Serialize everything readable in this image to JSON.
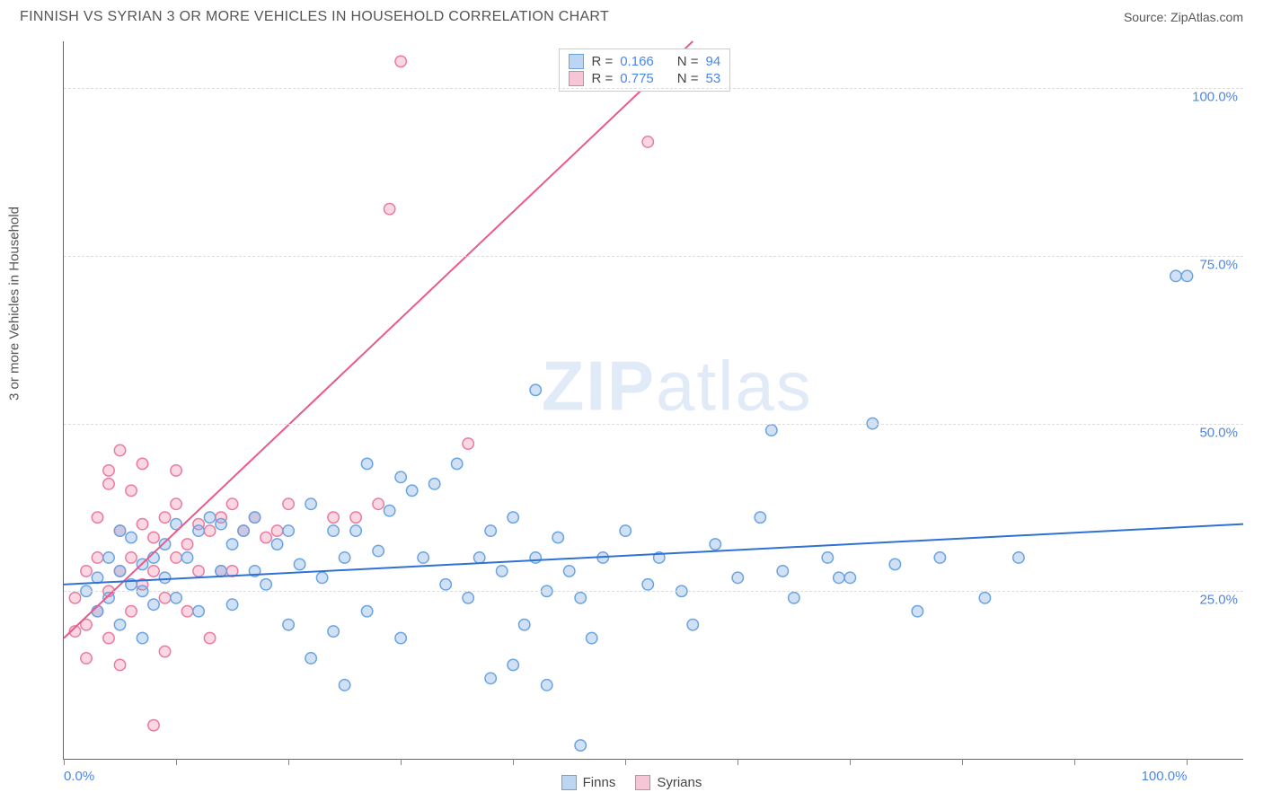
{
  "title": "FINNISH VS SYRIAN 3 OR MORE VEHICLES IN HOUSEHOLD CORRELATION CHART",
  "source_label": "Source: ",
  "source_name": "ZipAtlas.com",
  "y_axis_label": "3 or more Vehicles in Household",
  "watermark": {
    "zip": "ZIP",
    "atlas": "atlas"
  },
  "chart": {
    "type": "scatter",
    "xlim": [
      0,
      105
    ],
    "ylim": [
      0,
      107
    ],
    "y_ticks": [
      {
        "v": 25,
        "label": "25.0%"
      },
      {
        "v": 50,
        "label": "50.0%"
      },
      {
        "v": 75,
        "label": "75.0%"
      },
      {
        "v": 100,
        "label": "100.0%"
      }
    ],
    "x_ticks": [
      0,
      10,
      20,
      30,
      40,
      50,
      60,
      70,
      80,
      90,
      100
    ],
    "x_labels": [
      {
        "v": 0,
        "label": "0.0%"
      },
      {
        "v": 100,
        "label": "100.0%"
      }
    ],
    "marker_radius": 6.2,
    "marker_stroke_width": 1.5,
    "line_width": 2,
    "background_color": "#ffffff",
    "grid_color": "#dddddd"
  },
  "series": {
    "finns": {
      "label": "Finns",
      "fill_color": "rgba(120,170,230,0.35)",
      "stroke_color": "#6aa3e0",
      "line_color": "#2f72d4",
      "swatch_fill": "#bcd5f2",
      "swatch_border": "#6aa3e0",
      "R": "0.166",
      "N": "94",
      "trend": {
        "x1": 0,
        "y1": 26,
        "x2": 105,
        "y2": 35
      },
      "points": [
        [
          2,
          25
        ],
        [
          3,
          27
        ],
        [
          3,
          22
        ],
        [
          4,
          30
        ],
        [
          4,
          24
        ],
        [
          5,
          28
        ],
        [
          5,
          20
        ],
        [
          5,
          34
        ],
        [
          6,
          26
        ],
        [
          6,
          33
        ],
        [
          7,
          25
        ],
        [
          7,
          29
        ],
        [
          7,
          18
        ],
        [
          8,
          30
        ],
        [
          8,
          23
        ],
        [
          9,
          32
        ],
        [
          9,
          27
        ],
        [
          10,
          35
        ],
        [
          10,
          24
        ],
        [
          11,
          30
        ],
        [
          12,
          34
        ],
        [
          12,
          22
        ],
        [
          13,
          36
        ],
        [
          14,
          28
        ],
        [
          14,
          35
        ],
        [
          15,
          23
        ],
        [
          15,
          32
        ],
        [
          16,
          34
        ],
        [
          17,
          28
        ],
        [
          17,
          36
        ],
        [
          18,
          26
        ],
        [
          19,
          32
        ],
        [
          20,
          20
        ],
        [
          20,
          34
        ],
        [
          21,
          29
        ],
        [
          22,
          38
        ],
        [
          22,
          15
        ],
        [
          23,
          27
        ],
        [
          24,
          19
        ],
        [
          24,
          34
        ],
        [
          25,
          11
        ],
        [
          25,
          30
        ],
        [
          26,
          34
        ],
        [
          27,
          44
        ],
        [
          27,
          22
        ],
        [
          28,
          31
        ],
        [
          29,
          37
        ],
        [
          30,
          42
        ],
        [
          30,
          18
        ],
        [
          31,
          40
        ],
        [
          32,
          30
        ],
        [
          33,
          41
        ],
        [
          34,
          26
        ],
        [
          35,
          44
        ],
        [
          36,
          24
        ],
        [
          37,
          30
        ],
        [
          38,
          12
        ],
        [
          38,
          34
        ],
        [
          39,
          28
        ],
        [
          40,
          36
        ],
        [
          40,
          14
        ],
        [
          41,
          20
        ],
        [
          42,
          55
        ],
        [
          42,
          30
        ],
        [
          43,
          11
        ],
        [
          43,
          25
        ],
        [
          44,
          33
        ],
        [
          45,
          28
        ],
        [
          46,
          2
        ],
        [
          46,
          24
        ],
        [
          47,
          18
        ],
        [
          48,
          30
        ],
        [
          50,
          34
        ],
        [
          52,
          26
        ],
        [
          53,
          30
        ],
        [
          55,
          25
        ],
        [
          56,
          20
        ],
        [
          58,
          32
        ],
        [
          60,
          27
        ],
        [
          62,
          36
        ],
        [
          63,
          49
        ],
        [
          64,
          28
        ],
        [
          65,
          24
        ],
        [
          68,
          30
        ],
        [
          69,
          27
        ],
        [
          70,
          27
        ],
        [
          72,
          50
        ],
        [
          74,
          29
        ],
        [
          76,
          22
        ],
        [
          78,
          30
        ],
        [
          82,
          24
        ],
        [
          85,
          30
        ],
        [
          99,
          72
        ],
        [
          100,
          72
        ]
      ]
    },
    "syrians": {
      "label": "Syrians",
      "fill_color": "rgba(240,140,170,0.35)",
      "stroke_color": "#ea7aa2",
      "line_color": "#ea5a8a",
      "swatch_fill": "#f6c6d6",
      "swatch_border": "#ea7aa2",
      "R": "0.775",
      "N": "53",
      "trend": {
        "x1": 0,
        "y1": 18,
        "x2": 56,
        "y2": 107
      },
      "points": [
        [
          1,
          19
        ],
        [
          1,
          24
        ],
        [
          2,
          20
        ],
        [
          2,
          28
        ],
        [
          2,
          15
        ],
        [
          3,
          22
        ],
        [
          3,
          30
        ],
        [
          3,
          36
        ],
        [
          4,
          25
        ],
        [
          4,
          18
        ],
        [
          4,
          43
        ],
        [
          4,
          41
        ],
        [
          5,
          28
        ],
        [
          5,
          34
        ],
        [
          5,
          14
        ],
        [
          5,
          46
        ],
        [
          6,
          30
        ],
        [
          6,
          22
        ],
        [
          6,
          40
        ],
        [
          7,
          35
        ],
        [
          7,
          26
        ],
        [
          7,
          44
        ],
        [
          8,
          33
        ],
        [
          8,
          28
        ],
        [
          8,
          5
        ],
        [
          9,
          36
        ],
        [
          9,
          24
        ],
        [
          9,
          16
        ],
        [
          10,
          38
        ],
        [
          10,
          30
        ],
        [
          10,
          43
        ],
        [
          11,
          32
        ],
        [
          11,
          22
        ],
        [
          12,
          35
        ],
        [
          12,
          28
        ],
        [
          13,
          34
        ],
        [
          13,
          18
        ],
        [
          14,
          36
        ],
        [
          14,
          28
        ],
        [
          15,
          38
        ],
        [
          15,
          28
        ],
        [
          16,
          34
        ],
        [
          17,
          36
        ],
        [
          18,
          33
        ],
        [
          19,
          34
        ],
        [
          20,
          38
        ],
        [
          24,
          36
        ],
        [
          26,
          36
        ],
        [
          28,
          38
        ],
        [
          29,
          82
        ],
        [
          30,
          104
        ],
        [
          36,
          47
        ],
        [
          52,
          92
        ]
      ]
    }
  },
  "stats_legend": {
    "R_label": "R =",
    "N_label": "N ="
  }
}
